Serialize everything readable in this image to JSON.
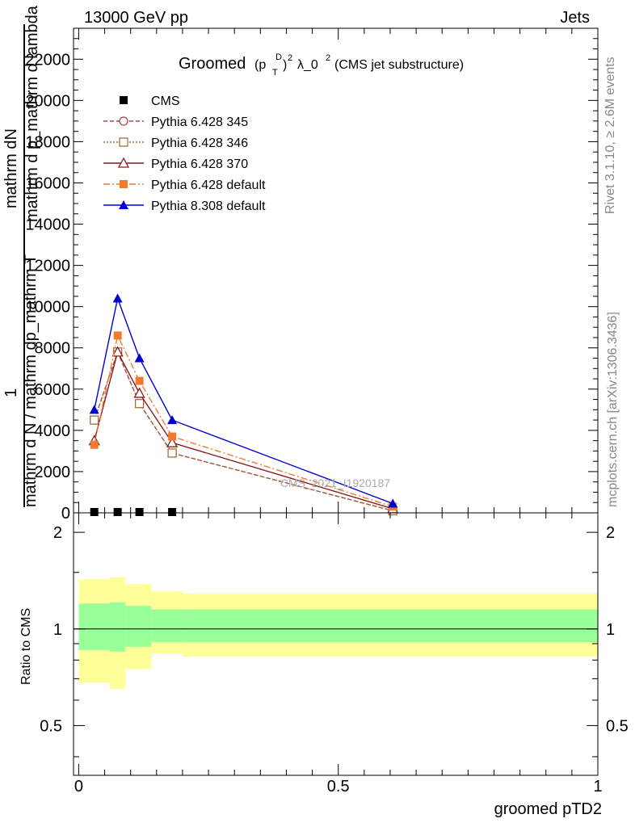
{
  "header": {
    "left": "13000 GeV pp",
    "right": "Jets"
  },
  "side_labels": {
    "rivet": "Rivet 3.1.10, ≥ 2.6M events",
    "mcplots": "mcplots.cern.ch [arXiv:1306.3436]"
  },
  "watermark": "CMS_2021_I1920187",
  "main_ylabel": {
    "numerator": "mathrm dN",
    "numerator2": "mathrm d p_mathrm d lambda",
    "one": "1",
    "denominator": "mathrm d N / mathrm dp_mathrm T"
  },
  "chart_data": [
    {
      "type": "line",
      "title": "Groomed",
      "title_parts": {
        "p": "(p",
        "sup_d": "D",
        "close": ")",
        "sup_2": "2",
        "sub_t": "T",
        "lambda": "λ_0",
        "sup_2b": "2",
        "rest": "(CMS jet substructure)"
      },
      "xlabel": "groomed pTD2",
      "ylabel": "",
      "xlim": [
        -0.01,
        1.0
      ],
      "ylim": [
        0,
        23500
      ],
      "y_ticks": [
        "0",
        "2000",
        "4000",
        "6000",
        "8000",
        "10000",
        "12000",
        "14000",
        "16000",
        "18000",
        "20000",
        "22000"
      ],
      "grid": false,
      "legend_position": "top-left",
      "series": [
        {
          "name": "CMS",
          "color": "#000000",
          "marker": "square",
          "line": "none",
          "x": [
            0.03,
            0.075,
            0.117,
            0.18
          ],
          "values": [
            30,
            30,
            30,
            30
          ]
        },
        {
          "name": "Pythia 6.428 345",
          "color": "#b0404a",
          "marker": "open-circle",
          "line": "dashed",
          "x": [
            0.03,
            0.075,
            0.117,
            0.18,
            0.605
          ],
          "values": [
            4500,
            7800,
            5300,
            2900,
            100
          ]
        },
        {
          "name": "Pythia 6.428 346",
          "color": "#a07040",
          "marker": "open-square",
          "line": "dotted",
          "x": [
            0.03,
            0.075,
            0.117,
            0.18,
            0.605
          ],
          "values": [
            4500,
            7800,
            5300,
            2900,
            100
          ]
        },
        {
          "name": "Pythia 6.428 370",
          "color": "#8b1a1a",
          "marker": "open-triangle",
          "line": "solid",
          "x": [
            0.03,
            0.075,
            0.117,
            0.18,
            0.605
          ],
          "values": [
            3500,
            7800,
            5800,
            3400,
            200
          ]
        },
        {
          "name": "Pythia 6.428 default",
          "color": "#f07a30",
          "marker": "square",
          "line": "dashdot",
          "x": [
            0.03,
            0.075,
            0.117,
            0.18,
            0.605
          ],
          "values": [
            3300,
            8600,
            6400,
            3700,
            300
          ]
        },
        {
          "name": "Pythia 8.308 default",
          "color": "#0000d0",
          "marker": "triangle",
          "line": "solid",
          "x": [
            0.03,
            0.075,
            0.117,
            0.18,
            0.605
          ],
          "values": [
            5000,
            10400,
            7500,
            4500,
            450
          ]
        }
      ]
    },
    {
      "type": "area",
      "title": "",
      "xlabel": "groomed pTD2",
      "ylabel": "Ratio to CMS",
      "xlim": [
        -0.01,
        1.0
      ],
      "ylim": [
        0.35,
        2.3
      ],
      "y_ticks_left": [
        "0.5",
        "1",
        "2"
      ],
      "y_ticks_right": [
        "0.5",
        "1",
        "2"
      ],
      "x_ticks": [
        "0",
        "0.5",
        "1"
      ],
      "grid": false,
      "reference_line": 1,
      "band_colors": {
        "outer": "#ffff99",
        "inner": "#99ff99"
      },
      "bins": [
        0.0,
        0.06,
        0.09,
        0.14,
        0.2,
        1.0
      ],
      "outer_low": [
        0.68,
        0.65,
        0.75,
        0.84,
        0.82
      ],
      "outer_high": [
        1.43,
        1.45,
        1.38,
        1.31,
        1.29
      ],
      "inner_low": [
        0.86,
        0.85,
        0.88,
        0.91,
        0.91
      ],
      "inner_high": [
        1.2,
        1.21,
        1.18,
        1.15,
        1.15
      ]
    }
  ]
}
